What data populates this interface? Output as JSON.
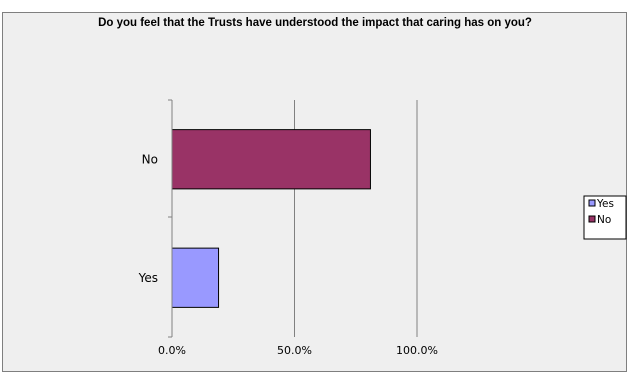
{
  "chart_data": {
    "type": "bar",
    "orientation": "horizontal",
    "title": "Do you feel that the Trusts have understood the impact that caring has on you?",
    "categories": [
      "Yes",
      "No"
    ],
    "series": [
      {
        "name": "Yes",
        "values": [
          19,
          null
        ],
        "color": "#9999ff"
      },
      {
        "name": "No",
        "values": [
          null,
          81
        ],
        "color": "#993366"
      }
    ],
    "xlim": [
      0,
      100
    ],
    "x_ticks": [
      "0.0%",
      "50.0%",
      "100.0%"
    ],
    "grid": true,
    "legend": "right"
  }
}
